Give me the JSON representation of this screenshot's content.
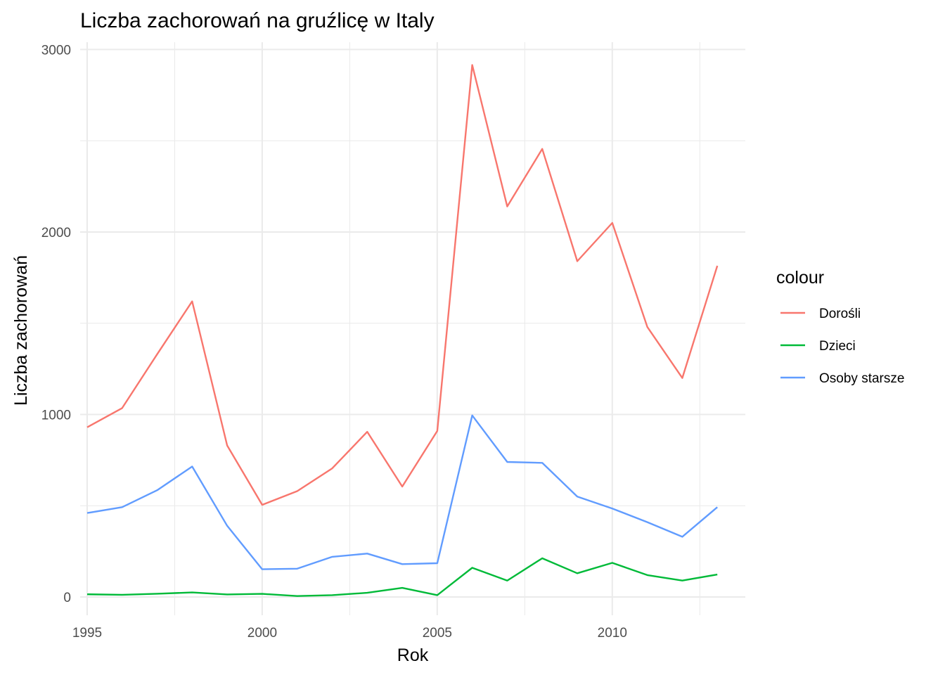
{
  "chart_data": {
    "type": "line",
    "title": "Liczba zachorowań na gruźlicę w Italy",
    "xlabel": "Rok",
    "ylabel": "Liczba zachorowań",
    "x": [
      1995,
      1996,
      1997,
      1998,
      1999,
      2000,
      2001,
      2002,
      2003,
      2004,
      2005,
      2006,
      2007,
      2008,
      2009,
      2010,
      2011,
      2012,
      2013
    ],
    "xlim": [
      1994.8,
      2013.8
    ],
    "ylim": [
      -100,
      3040
    ],
    "x_ticks": [
      1995,
      2000,
      2005,
      2010
    ],
    "x_tick_labels": [
      "1995",
      "2000",
      "2005",
      "2010"
    ],
    "y_ticks": [
      0,
      1000,
      2000,
      3000
    ],
    "y_tick_labels": [
      "0",
      "1000",
      "2000",
      "3000"
    ],
    "grid": true,
    "legend": {
      "title": "colour",
      "position": "right"
    },
    "series": [
      {
        "name": "Dorośli",
        "color": "#F8766D",
        "values": [
          930,
          1035,
          1330,
          1620,
          830,
          505,
          580,
          705,
          905,
          605,
          910,
          2915,
          2140,
          2455,
          1840,
          2050,
          1480,
          1200,
          1815
        ]
      },
      {
        "name": "Dzieci",
        "color": "#00BA38",
        "values": [
          15,
          12,
          18,
          25,
          14,
          17,
          5,
          10,
          23,
          50,
          10,
          160,
          90,
          212,
          130,
          187,
          120,
          90,
          123
        ]
      },
      {
        "name": "Osoby starsze",
        "color": "#619CFF",
        "values": [
          460,
          492,
          585,
          715,
          390,
          152,
          155,
          220,
          238,
          180,
          185,
          995,
          740,
          735,
          550,
          485,
          410,
          330,
          492
        ]
      }
    ]
  }
}
